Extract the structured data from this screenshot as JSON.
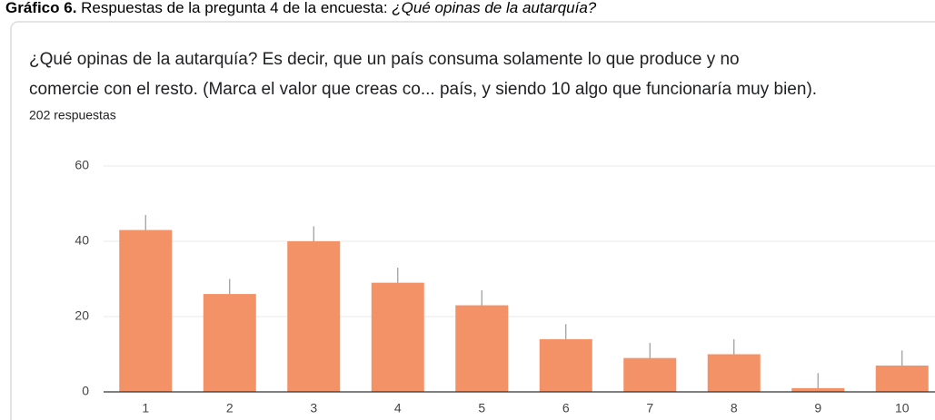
{
  "caption": {
    "label": "Gráfico 6.",
    "text": "Respuestas de la pregunta 4 de la encuesta:",
    "question": "¿Qué opinas de la autarquía?"
  },
  "chart_data": {
    "type": "bar",
    "title_lines": [
      "¿Qué opinas de la autarquía? Es decir, que un país consuma solamente lo que produce y no",
      "comercie con el resto. (Marca el valor que creas co... país, y siendo 10 algo que funcionaría muy bien)."
    ],
    "subtitle": "202 respuestas",
    "categories": [
      "1",
      "2",
      "3",
      "4",
      "5",
      "6",
      "7",
      "8",
      "9",
      "10"
    ],
    "values": [
      43,
      26,
      40,
      29,
      23,
      14,
      9,
      10,
      1,
      7
    ],
    "errors": [
      4,
      4,
      4,
      4,
      4,
      4,
      4,
      4,
      4,
      4
    ],
    "color": "#f39167",
    "ylim": [
      0,
      60
    ],
    "yticks": [
      0,
      20,
      40,
      60
    ],
    "grid": true
  }
}
